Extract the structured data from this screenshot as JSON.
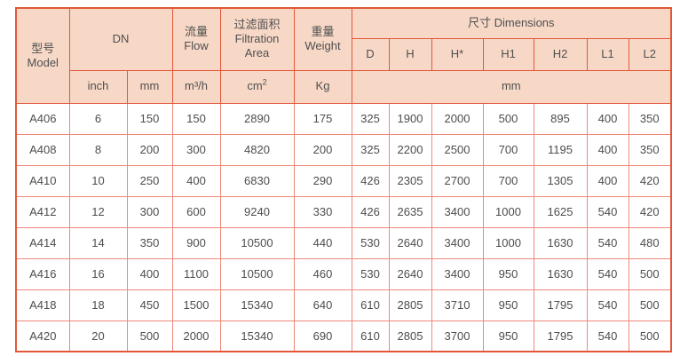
{
  "colors": {
    "header_bg": "#f7d8c7",
    "strong_border": "#e2573a",
    "grid_border": "#f0887a",
    "header_text": "#4f4f4f",
    "data_text": "#4d4d4d",
    "page_bg": "#ffffff"
  },
  "table": {
    "header": {
      "model_zh": "型号",
      "model_en": "Model",
      "dn_label": "DN",
      "dn_sub": [
        "inch",
        "mm"
      ],
      "flow_zh": "流量",
      "flow_en": "Flow",
      "flow_unit": "m³/h",
      "filtration_zh": "过滤面积",
      "filtration_en_line1": "Filtration",
      "filtration_en_line2": "Area",
      "filtration_unit_base": "cm",
      "filtration_unit_sup": "2",
      "weight_zh": "重量",
      "weight_en": "Weight",
      "weight_unit": "Kg",
      "dimensions_label": "尺寸 Dimensions",
      "dimension_cols": [
        "D",
        "H",
        "H*",
        "H1",
        "H2",
        "L1",
        "L2"
      ],
      "dimensions_unit": "mm"
    },
    "rows": [
      {
        "model": "A406",
        "values": [
          "6",
          "150",
          "150",
          "2890",
          "175",
          "325",
          "1900",
          "2000",
          "500",
          "895",
          "400",
          "350"
        ]
      },
      {
        "model": "A408",
        "values": [
          "8",
          "200",
          "300",
          "4820",
          "200",
          "325",
          "2200",
          "2500",
          "700",
          "1195",
          "400",
          "350"
        ]
      },
      {
        "model": "A410",
        "values": [
          "10",
          "250",
          "400",
          "6830",
          "290",
          "426",
          "2305",
          "2700",
          "700",
          "1305",
          "400",
          "420"
        ]
      },
      {
        "model": "A412",
        "values": [
          "12",
          "300",
          "600",
          "9240",
          "330",
          "426",
          "2635",
          "3400",
          "1000",
          "1625",
          "540",
          "420"
        ]
      },
      {
        "model": "A414",
        "values": [
          "14",
          "350",
          "900",
          "10500",
          "440",
          "530",
          "2640",
          "3400",
          "1000",
          "1630",
          "540",
          "480"
        ]
      },
      {
        "model": "A416",
        "values": [
          "16",
          "400",
          "1100",
          "10500",
          "460",
          "530",
          "2640",
          "3400",
          "950",
          "1630",
          "540",
          "500"
        ]
      },
      {
        "model": "A418",
        "values": [
          "18",
          "450",
          "1500",
          "15340",
          "640",
          "610",
          "2805",
          "3710",
          "950",
          "1795",
          "540",
          "500"
        ]
      },
      {
        "model": "A420",
        "values": [
          "20",
          "500",
          "2000",
          "15340",
          "690",
          "610",
          "2805",
          "3700",
          "950",
          "1795",
          "540",
          "500"
        ]
      }
    ]
  }
}
